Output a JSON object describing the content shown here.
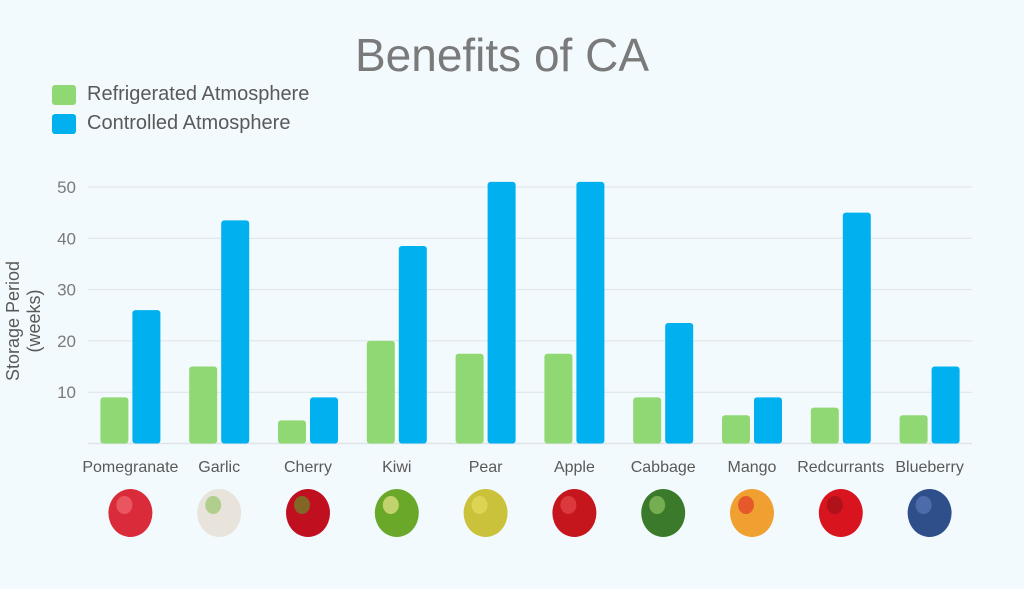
{
  "chart_data": {
    "type": "bar",
    "title": "Benefits of CA",
    "ylabel": "Storage Period (weeks)",
    "xlabel": "",
    "ylim": [
      0,
      50
    ],
    "yticks": [
      10,
      20,
      30,
      40,
      50
    ],
    "grid": true,
    "legend_position": "top-left",
    "categories": [
      "Pomegranate",
      "Garlic",
      "Cherry",
      "Kiwi",
      "Pear",
      "Apple",
      "Cabbage",
      "Mango",
      "Redcurrants",
      "Blueberry"
    ],
    "series": [
      {
        "name": "Refrigerated Atmosphere",
        "color": "#8fd873",
        "values": [
          9,
          15,
          4.5,
          20,
          17.5,
          17.5,
          9,
          5.5,
          7,
          5.5
        ]
      },
      {
        "name": "Controlled Atmosphere",
        "color": "#00b0ef",
        "values": [
          26,
          43.5,
          9,
          38.5,
          51,
          51,
          23.5,
          9,
          45,
          15
        ]
      }
    ],
    "category_icons": [
      "pomegranate-icon",
      "garlic-icon",
      "cherry-icon",
      "kiwi-icon",
      "pear-icon",
      "apple-icon",
      "cabbage-icon",
      "mango-icon",
      "redcurrants-icon",
      "blueberry-icon"
    ]
  }
}
